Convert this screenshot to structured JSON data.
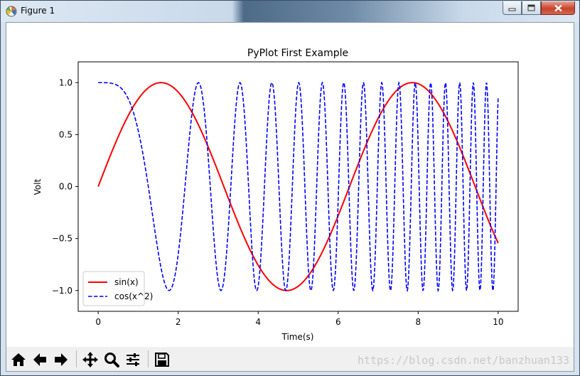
{
  "window": {
    "title": "Figure 1"
  },
  "chart_data": {
    "type": "line",
    "title": "PyPlot First Example",
    "xlabel": "Time(s)",
    "ylabel": "Volt",
    "xlim": [
      -0.5,
      10.5
    ],
    "ylim": [
      -1.2,
      1.2
    ],
    "xticks": [
      0,
      2,
      4,
      6,
      8,
      10
    ],
    "xtick_labels": [
      "0",
      "2",
      "4",
      "6",
      "8",
      "10"
    ],
    "yticks": [
      1.0,
      0.5,
      0.0,
      -0.5,
      -1.0
    ],
    "ytick_labels": [
      "1.0",
      "0.5",
      "0.0",
      "−0.5",
      "−1.0"
    ],
    "grid": false,
    "legend_placement": "lower-left",
    "x_range": [
      0,
      10
    ],
    "series": [
      {
        "name": "sin(x)",
        "expression": "sin(x)",
        "color": "#ff0000",
        "style": "solid"
      },
      {
        "name": "cos(x^2)",
        "expression": "cos(x^2)",
        "color": "#0000ff",
        "style": "dashed"
      }
    ]
  },
  "toolbar": {
    "buttons": [
      {
        "name": "home-icon"
      },
      {
        "name": "back-icon"
      },
      {
        "name": "forward-icon"
      },
      {
        "name": "pan-icon"
      },
      {
        "name": "zoom-icon"
      },
      {
        "name": "configure-subplots-icon"
      },
      {
        "name": "save-icon"
      }
    ],
    "watermark": "https://blog.csdn.net/banzhuan133"
  }
}
